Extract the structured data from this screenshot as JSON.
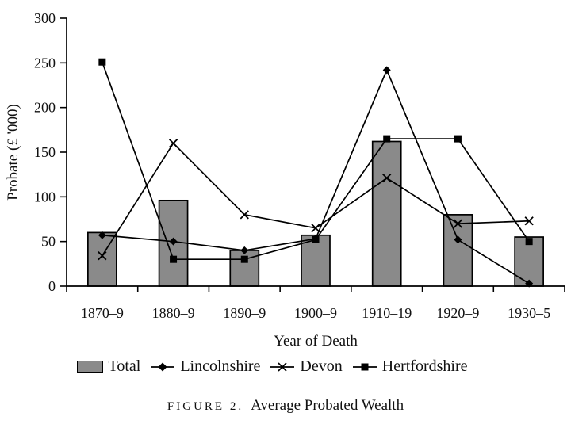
{
  "figure": {
    "caption_label": "FIGURE 2.",
    "caption_title": "Average Probated Wealth"
  },
  "chart_data": {
    "type": "bar",
    "subtype": "bar-and-line combo",
    "title": "Average Probated Wealth",
    "xlabel": "Year of Death",
    "ylabel": "Probate (£ '000)",
    "categories": [
      "1870–9",
      "1880–9",
      "1890–9",
      "1900–9",
      "1910–19",
      "1920–9",
      "1930–5"
    ],
    "series": [
      {
        "name": "Total",
        "type": "bar",
        "marker": "bar-swatch",
        "color": "#8a8a8a",
        "values": [
          60,
          96,
          40,
          57,
          162,
          80,
          55
        ]
      },
      {
        "name": "Lincolnshire",
        "type": "line",
        "marker": "diamond",
        "color": "#000000",
        "values": [
          57,
          50,
          40,
          53,
          242,
          52,
          3
        ]
      },
      {
        "name": "Devon",
        "type": "line",
        "marker": "x",
        "color": "#000000",
        "values": [
          34,
          160,
          80,
          65,
          121,
          70,
          73
        ]
      },
      {
        "name": "Hertfordshire",
        "type": "line",
        "marker": "square",
        "color": "#000000",
        "values": [
          251,
          30,
          30,
          52,
          165,
          165,
          50
        ]
      }
    ],
    "ylim": [
      0,
      300
    ],
    "ytick_step": 50,
    "yticks": [
      0,
      50,
      100,
      150,
      200,
      250,
      300
    ],
    "grid": false,
    "legend_position": "bottom",
    "axis_color": "#000000"
  }
}
